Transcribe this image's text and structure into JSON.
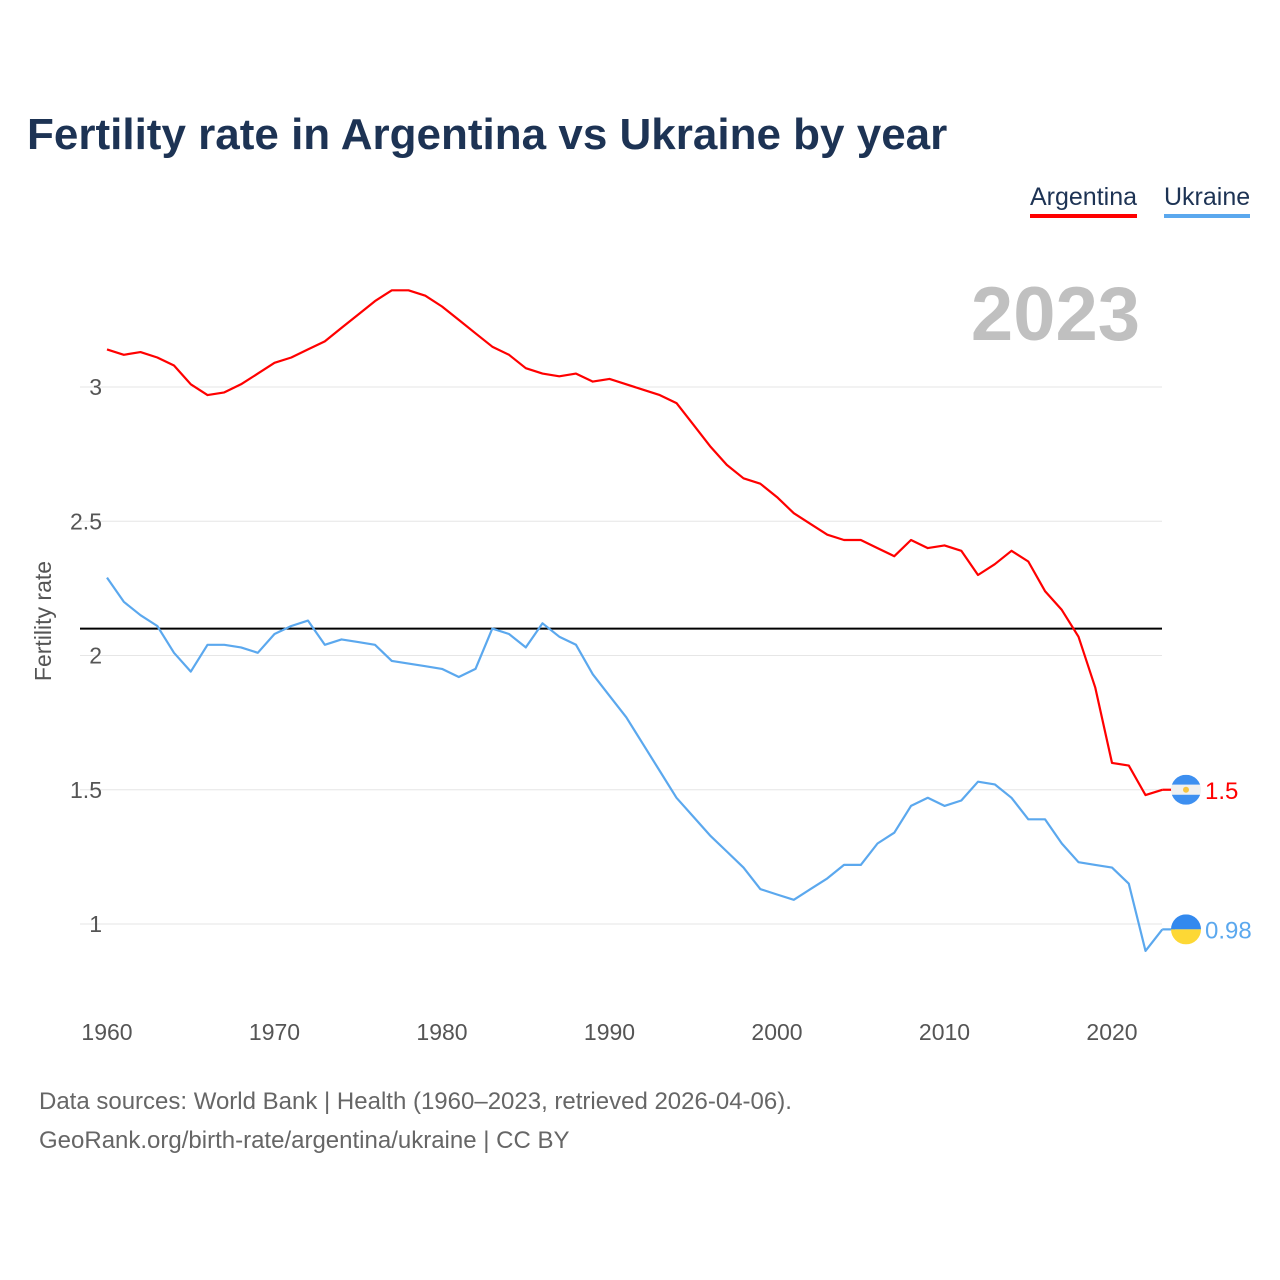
{
  "chart_data": {
    "type": "line",
    "title": "Fertility rate in Argentina vs Ukraine by year",
    "xlabel": "",
    "ylabel": "Fertility rate",
    "year_watermark": "2023",
    "xlim": [
      1960,
      2023
    ],
    "ylim": [
      0.75,
      3.5
    ],
    "x_ticks": [
      1960,
      1970,
      1980,
      1990,
      2000,
      2010,
      2020
    ],
    "y_ticks": [
      1,
      1.5,
      2,
      2.5,
      3
    ],
    "y_tick_labels": [
      "1",
      "1.5",
      "2",
      "2.5",
      "3"
    ],
    "grid": true,
    "legend_position": "top-right",
    "reference_line": {
      "value": 2.1,
      "color": "#000000"
    },
    "x": [
      1960,
      1961,
      1962,
      1963,
      1964,
      1965,
      1966,
      1967,
      1968,
      1969,
      1970,
      1971,
      1972,
      1973,
      1974,
      1975,
      1976,
      1977,
      1978,
      1979,
      1980,
      1981,
      1982,
      1983,
      1984,
      1985,
      1986,
      1987,
      1988,
      1989,
      1990,
      1991,
      1992,
      1993,
      1994,
      1995,
      1996,
      1997,
      1998,
      1999,
      2000,
      2001,
      2002,
      2003,
      2004,
      2005,
      2006,
      2007,
      2008,
      2009,
      2010,
      2011,
      2012,
      2013,
      2014,
      2015,
      2016,
      2017,
      2018,
      2019,
      2020,
      2021,
      2022,
      2023
    ],
    "series": [
      {
        "name": "Argentina",
        "color": "#ff0000",
        "end_label": "1.5",
        "values": [
          3.14,
          3.12,
          3.13,
          3.11,
          3.08,
          3.01,
          2.97,
          2.98,
          3.01,
          3.05,
          3.09,
          3.11,
          3.14,
          3.17,
          3.22,
          3.27,
          3.32,
          3.36,
          3.36,
          3.34,
          3.3,
          3.25,
          3.2,
          3.15,
          3.12,
          3.07,
          3.05,
          3.04,
          3.05,
          3.02,
          3.03,
          3.01,
          2.99,
          2.97,
          2.94,
          2.86,
          2.78,
          2.71,
          2.66,
          2.64,
          2.59,
          2.53,
          2.49,
          2.45,
          2.43,
          2.43,
          2.4,
          2.37,
          2.43,
          2.4,
          2.41,
          2.39,
          2.3,
          2.34,
          2.39,
          2.35,
          2.24,
          2.17,
          2.07,
          1.88,
          1.6,
          1.59,
          1.48,
          1.5
        ]
      },
      {
        "name": "Ukraine",
        "color": "#5ba8ee",
        "end_label": "0.98",
        "values": [
          2.29,
          2.2,
          2.15,
          2.11,
          2.01,
          1.94,
          2.04,
          2.04,
          2.03,
          2.01,
          2.08,
          2.11,
          2.13,
          2.04,
          2.06,
          2.05,
          2.04,
          1.98,
          1.97,
          1.96,
          1.95,
          1.92,
          1.95,
          2.1,
          2.08,
          2.03,
          2.12,
          2.07,
          2.04,
          1.93,
          1.85,
          1.77,
          1.67,
          1.57,
          1.47,
          1.4,
          1.33,
          1.27,
          1.21,
          1.13,
          1.11,
          1.09,
          1.13,
          1.17,
          1.22,
          1.22,
          1.3,
          1.34,
          1.44,
          1.47,
          1.44,
          1.46,
          1.53,
          1.52,
          1.47,
          1.39,
          1.39,
          1.3,
          1.23,
          1.22,
          1.21,
          1.15,
          0.9,
          0.98
        ]
      }
    ]
  },
  "footer": {
    "line1": "Data sources: World Bank | Health (1960–2023, retrieved 2026-04-06).",
    "line2": "GeoRank.org/birth-rate/argentina/ukraine | CC BY"
  }
}
